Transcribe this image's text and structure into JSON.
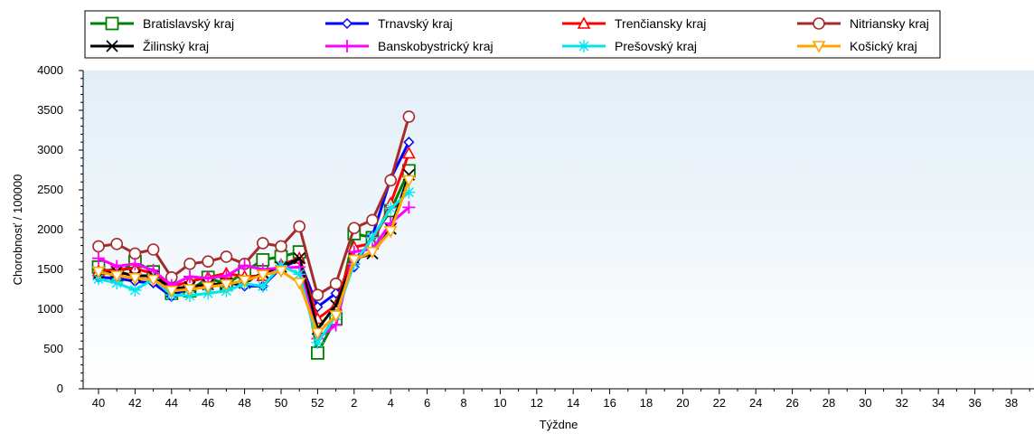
{
  "chart_data": {
    "type": "line",
    "title": "",
    "xlabel": "Týždne",
    "ylabel": "Chorobnosť / 100000",
    "ylim": [
      0,
      4000
    ],
    "yticks": [
      0,
      500,
      1000,
      1500,
      2000,
      2500,
      3000,
      3500,
      4000
    ],
    "xticks": [
      "40",
      "42",
      "44",
      "46",
      "48",
      "50",
      "52",
      "2",
      "4",
      "6",
      "8",
      "10",
      "12",
      "14",
      "16",
      "18",
      "20",
      "22",
      "24",
      "26",
      "28",
      "30",
      "32",
      "34",
      "36",
      "38"
    ],
    "x": [
      "40",
      "41",
      "42",
      "43",
      "44",
      "45",
      "46",
      "47",
      "48",
      "49",
      "50",
      "51",
      "52",
      "1",
      "2",
      "3",
      "4",
      "5"
    ],
    "grid": false,
    "legend_position": "top",
    "series": [
      {
        "name": "Bratislavský kraj",
        "color": "#008000",
        "marker": "square",
        "values": [
          1530,
          1430,
          1600,
          1470,
          1200,
          1230,
          1400,
          1310,
          1470,
          1620,
          1660,
          1720,
          450,
          880,
          1950,
          1900,
          2240,
          2740
        ]
      },
      {
        "name": "Trnavský kraj",
        "color": "#0000ff",
        "marker": "diamond",
        "values": [
          1400,
          1390,
          1350,
          1330,
          1160,
          1280,
          1270,
          1340,
          1290,
          1290,
          1520,
          1620,
          1030,
          1200,
          1530,
          1920,
          2640,
          3100
        ]
      },
      {
        "name": "Trenčiansky kraj",
        "color": "#ff0000",
        "marker": "triangle-up",
        "values": [
          1480,
          1500,
          1510,
          1450,
          1280,
          1350,
          1400,
          1450,
          1410,
          1420,
          1560,
          1640,
          880,
          1050,
          1780,
          1830,
          2330,
          2960
        ]
      },
      {
        "name": "Nitriansky kraj",
        "color": "#a52a2a",
        "marker": "circle",
        "values": [
          1790,
          1820,
          1700,
          1750,
          1400,
          1570,
          1600,
          1660,
          1570,
          1830,
          1790,
          2040,
          1180,
          1320,
          2020,
          2120,
          2620,
          3420
        ]
      },
      {
        "name": "Žilinský kraj",
        "color": "#000000",
        "marker": "x",
        "values": [
          1440,
          1470,
          1420,
          1420,
          1260,
          1280,
          1310,
          1320,
          1330,
          1460,
          1530,
          1640,
          750,
          1050,
          1630,
          1700,
          2010,
          2690
        ]
      },
      {
        "name": "Banskobystrický kraj",
        "color": "#ff00ff",
        "marker": "plus",
        "values": [
          1640,
          1540,
          1570,
          1490,
          1300,
          1410,
          1390,
          1420,
          1550,
          1500,
          1520,
          1530,
          630,
          800,
          1720,
          1760,
          2080,
          2280
        ]
      },
      {
        "name": "Prešovský kraj",
        "color": "#00e5ee",
        "marker": "asterisk",
        "values": [
          1380,
          1330,
          1240,
          1380,
          1180,
          1170,
          1200,
          1230,
          1320,
          1290,
          1550,
          1440,
          580,
          920,
          1570,
          1900,
          2270,
          2470
        ]
      },
      {
        "name": "Košický kraj",
        "color": "#ffa500",
        "marker": "triangle-down",
        "values": [
          1470,
          1420,
          1390,
          1370,
          1230,
          1250,
          1280,
          1310,
          1360,
          1430,
          1480,
          1330,
          700,
          920,
          1620,
          1720,
          1980,
          2620
        ]
      }
    ]
  }
}
